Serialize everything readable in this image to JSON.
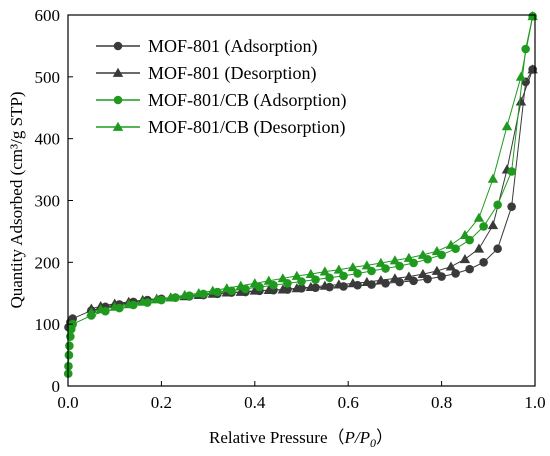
{
  "chart_data": {
    "type": "scatter",
    "xlabel": "Relative Pressure（P/P0）",
    "ylabel": "Quantity Adsorbed (cm³/g STP)",
    "xlim": [
      0.0,
      1.0
    ],
    "ylim": [
      0,
      600
    ],
    "xticks": [
      "0.0",
      "0.2",
      "0.4",
      "0.6",
      "0.8",
      "1.0"
    ],
    "yticks": [
      "0",
      "100",
      "200",
      "300",
      "400",
      "500",
      "600"
    ],
    "grid": false,
    "legend_position": "top-left",
    "series": [
      {
        "name": "MOF-801 (Adsorption)",
        "color": "#3a3a3a",
        "marker": "circle",
        "x": [
          0.001,
          0.005,
          0.01,
          0.05,
          0.08,
          0.11,
          0.14,
          0.17,
          0.2,
          0.23,
          0.26,
          0.29,
          0.32,
          0.35,
          0.38,
          0.41,
          0.44,
          0.47,
          0.5,
          0.53,
          0.56,
          0.59,
          0.62,
          0.65,
          0.68,
          0.71,
          0.74,
          0.77,
          0.8,
          0.83,
          0.86,
          0.89,
          0.92,
          0.95,
          0.98,
          0.995
        ],
        "y": [
          95,
          103,
          109,
          122,
          128,
          132,
          136,
          139,
          141,
          143,
          145,
          147,
          149,
          151,
          152,
          154,
          155,
          156,
          158,
          159,
          160,
          161,
          163,
          164,
          166,
          168,
          170,
          173,
          177,
          182,
          189,
          200,
          222,
          290,
          492,
          512
        ]
      },
      {
        "name": "MOF-801 (Desorption)",
        "color": "#3a3a3a",
        "marker": "triangle",
        "x": [
          0.995,
          0.97,
          0.94,
          0.91,
          0.88,
          0.85,
          0.82,
          0.79,
          0.76,
          0.73,
          0.7,
          0.67,
          0.64,
          0.61,
          0.58,
          0.55,
          0.52,
          0.49,
          0.46,
          0.43,
          0.4,
          0.37,
          0.34,
          0.31,
          0.28,
          0.25,
          0.22,
          0.19,
          0.16,
          0.13,
          0.1,
          0.07,
          0.05
        ],
        "y": [
          512,
          460,
          350,
          260,
          222,
          205,
          193,
          186,
          181,
          177,
          174,
          171,
          168,
          166,
          164,
          162,
          160,
          158,
          156,
          155,
          154,
          152,
          151,
          149,
          147,
          145,
          143,
          141,
          139,
          136,
          133,
          129,
          125
        ]
      },
      {
        "name": "MOF-801/CB (Adsorption)",
        "color": "#1f9a1f",
        "marker": "circle",
        "x": [
          0.0005,
          0.001,
          0.002,
          0.003,
          0.005,
          0.007,
          0.01,
          0.05,
          0.08,
          0.11,
          0.14,
          0.17,
          0.2,
          0.23,
          0.26,
          0.29,
          0.32,
          0.35,
          0.38,
          0.41,
          0.44,
          0.47,
          0.5,
          0.53,
          0.56,
          0.59,
          0.62,
          0.65,
          0.68,
          0.71,
          0.74,
          0.77,
          0.8,
          0.83,
          0.86,
          0.89,
          0.92,
          0.95,
          0.98,
          0.995
        ],
        "y": [
          20,
          32,
          50,
          65,
          80,
          92,
          100,
          114,
          121,
          126,
          131,
          135,
          139,
          143,
          146,
          149,
          152,
          154,
          157,
          160,
          163,
          166,
          169,
          172,
          175,
          178,
          182,
          186,
          190,
          194,
          199,
          205,
          212,
          222,
          236,
          258,
          293,
          347,
          545,
          598
        ]
      },
      {
        "name": "MOF-801/CB (Desorption)",
        "color": "#1f9a1f",
        "marker": "triangle",
        "x": [
          0.995,
          0.97,
          0.94,
          0.91,
          0.88,
          0.85,
          0.82,
          0.79,
          0.76,
          0.73,
          0.7,
          0.67,
          0.64,
          0.61,
          0.58,
          0.55,
          0.52,
          0.49,
          0.46,
          0.43,
          0.4,
          0.37,
          0.34,
          0.31,
          0.28,
          0.25,
          0.22,
          0.19,
          0.16,
          0.13,
          0.1,
          0.07,
          0.05
        ],
        "y": [
          598,
          500,
          420,
          335,
          272,
          244,
          228,
          218,
          212,
          207,
          203,
          199,
          195,
          192,
          188,
          185,
          181,
          178,
          174,
          170,
          166,
          162,
          158,
          154,
          150,
          147,
          143,
          140,
          136,
          132,
          128,
          124,
          119
        ]
      }
    ]
  }
}
